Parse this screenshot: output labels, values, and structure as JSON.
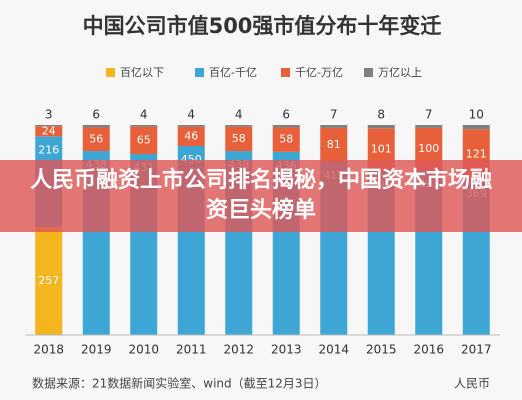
{
  "chart_data": {
    "type": "stacked_bar",
    "title": "中国公司市值500强市值分布十年变迁",
    "categories": [
      "2018",
      "2019",
      "2010",
      "2011",
      "2012",
      "2013",
      "2014",
      "2015",
      "2016",
      "2017"
    ],
    "series": [
      {
        "name": "百亿以下",
        "color": "#f5b51e",
        "values": [
          257,
          0,
          0,
          0,
          0,
          0,
          0,
          0,
          0,
          0
        ]
      },
      {
        "name": "百亿-千亿",
        "color": "#3ea6d5",
        "values": [
          216,
          438,
          431,
          450,
          438,
          436,
          412,
          391,
          393,
          369
        ]
      },
      {
        "name": "千亿-万亿",
        "color": "#e8603a",
        "values": [
          24,
          56,
          65,
          46,
          58,
          58,
          81,
          101,
          100,
          121
        ]
      },
      {
        "name": "万亿以上",
        "color": "#808080",
        "values": [
          3,
          6,
          4,
          4,
          4,
          6,
          7,
          8,
          7,
          10
        ]
      }
    ],
    "ylim": [
      0,
      500
    ],
    "source": "数据来源：21数据新闻实验室、wind（截至12月3日）",
    "logo": "人民币"
  },
  "headline": "人民币融资上市公司排名揭秘，中国资本市场融资巨头榜单"
}
